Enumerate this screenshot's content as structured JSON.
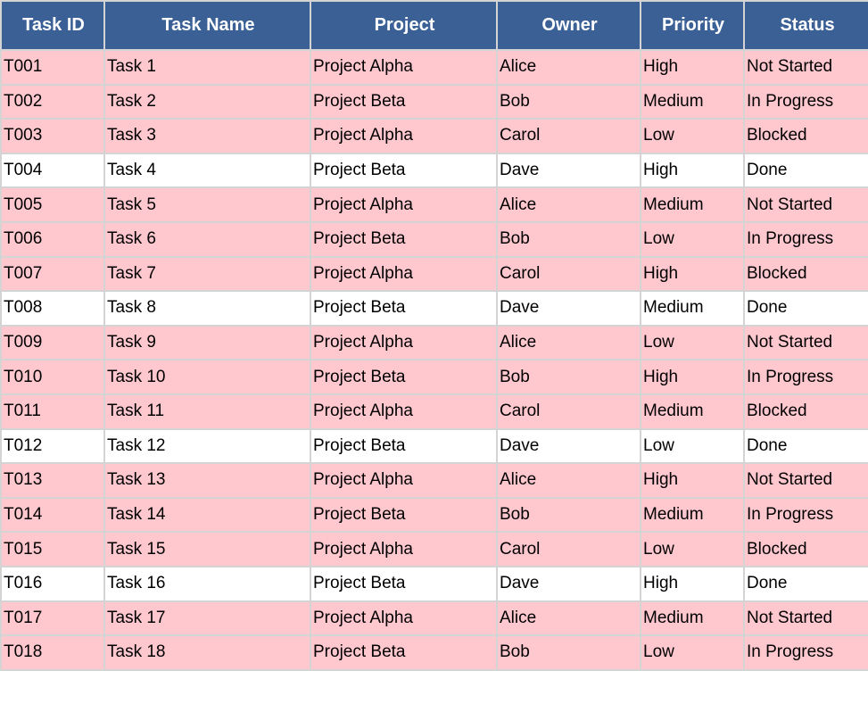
{
  "table": {
    "columns": [
      "Task ID",
      "Task Name",
      "Project",
      "Owner",
      "Priority",
      "Status"
    ],
    "rows": [
      [
        "T001",
        "Task 1",
        "Project Alpha",
        "Alice",
        "High",
        "Not Started"
      ],
      [
        "T002",
        "Task 2",
        "Project Beta",
        "Bob",
        "Medium",
        "In Progress"
      ],
      [
        "T003",
        "Task 3",
        "Project Alpha",
        "Carol",
        "Low",
        "Blocked"
      ],
      [
        "T004",
        "Task 4",
        "Project Beta",
        "Dave",
        "High",
        "Done"
      ],
      [
        "T005",
        "Task 5",
        "Project Alpha",
        "Alice",
        "Medium",
        "Not Started"
      ],
      [
        "T006",
        "Task 6",
        "Project Beta",
        "Bob",
        "Low",
        "In Progress"
      ],
      [
        "T007",
        "Task 7",
        "Project Alpha",
        "Carol",
        "High",
        "Blocked"
      ],
      [
        "T008",
        "Task 8",
        "Project Beta",
        "Dave",
        "Medium",
        "Done"
      ],
      [
        "T009",
        "Task 9",
        "Project Alpha",
        "Alice",
        "Low",
        "Not Started"
      ],
      [
        "T010",
        "Task 10",
        "Project Beta",
        "Bob",
        "High",
        "In Progress"
      ],
      [
        "T011",
        "Task 11",
        "Project Alpha",
        "Carol",
        "Medium",
        "Blocked"
      ],
      [
        "T012",
        "Task 12",
        "Project Beta",
        "Dave",
        "Low",
        "Done"
      ],
      [
        "T013",
        "Task 13",
        "Project Alpha",
        "Alice",
        "High",
        "Not Started"
      ],
      [
        "T014",
        "Task 14",
        "Project Beta",
        "Bob",
        "Medium",
        "In Progress"
      ],
      [
        "T015",
        "Task 15",
        "Project Alpha",
        "Carol",
        "Low",
        "Blocked"
      ],
      [
        "T016",
        "Task 16",
        "Project Beta",
        "Dave",
        "High",
        "Done"
      ],
      [
        "T017",
        "Task 17",
        "Project Alpha",
        "Alice",
        "Medium",
        "Not Started"
      ],
      [
        "T018",
        "Task 18",
        "Project Beta",
        "Bob",
        "Low",
        "In Progress"
      ]
    ]
  }
}
